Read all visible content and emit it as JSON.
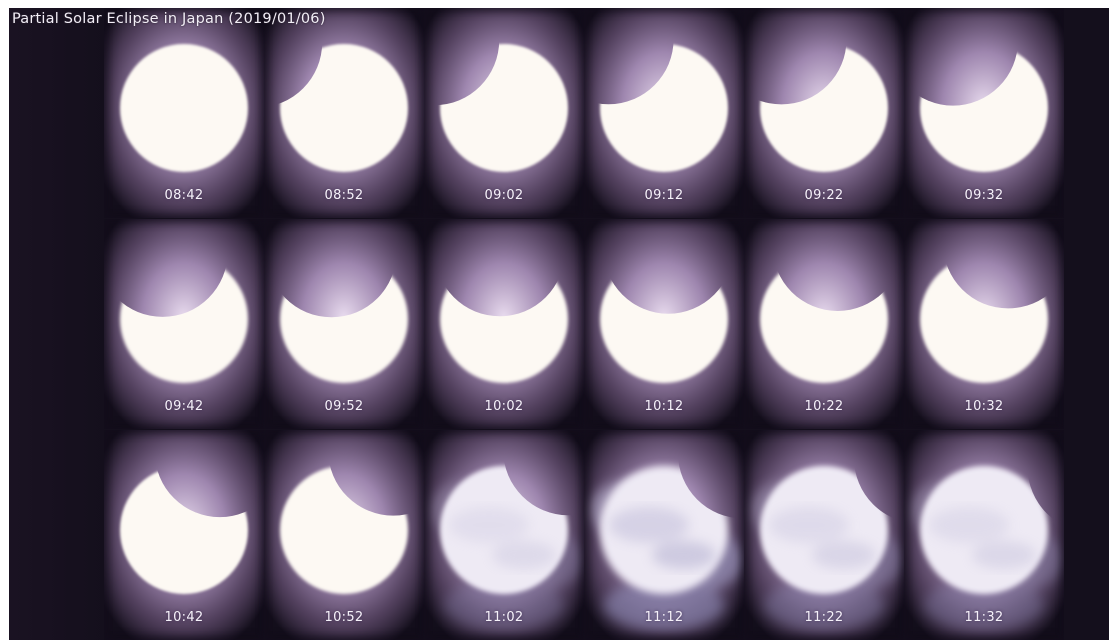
{
  "title": "Partial Solar Eclipse in Japan (2019/01/06)",
  "colors": {
    "background": "#140f1c",
    "halo": "#a58cb6",
    "sun_disk": "#fdf9f3",
    "cloud_tint": "#b9b2cf",
    "label": "#f6f2fa"
  },
  "frames": [
    {
      "time": "08:42",
      "coverage": 0.0,
      "haze": 0.0
    },
    {
      "time": "08:52",
      "coverage": 0.15,
      "haze": 0.0
    },
    {
      "time": "09:02",
      "coverage": 0.24,
      "haze": 0.0
    },
    {
      "time": "09:12",
      "coverage": 0.31,
      "haze": 0.0
    },
    {
      "time": "09:22",
      "coverage": 0.37,
      "haze": 0.0
    },
    {
      "time": "09:32",
      "coverage": 0.42,
      "haze": 0.0
    },
    {
      "time": "09:42",
      "coverage": 0.45,
      "haze": 0.1
    },
    {
      "time": "09:52",
      "coverage": 0.47,
      "haze": 0.15
    },
    {
      "time": "10:02",
      "coverage": 0.47,
      "haze": 0.15
    },
    {
      "time": "10:12",
      "coverage": 0.45,
      "haze": 0.15
    },
    {
      "time": "10:22",
      "coverage": 0.42,
      "haze": 0.15
    },
    {
      "time": "10:32",
      "coverage": 0.38,
      "haze": 0.1
    },
    {
      "time": "10:42",
      "coverage": 0.33,
      "haze": 0.0
    },
    {
      "time": "10:52",
      "coverage": 0.27,
      "haze": 0.1
    },
    {
      "time": "11:02",
      "coverage": 0.2,
      "haze": 0.4
    },
    {
      "time": "11:12",
      "coverage": 0.14,
      "haze": 0.8
    },
    {
      "time": "11:22",
      "coverage": 0.07,
      "haze": 0.5
    },
    {
      "time": "11:32",
      "coverage": 0.02,
      "haze": 0.45
    }
  ]
}
